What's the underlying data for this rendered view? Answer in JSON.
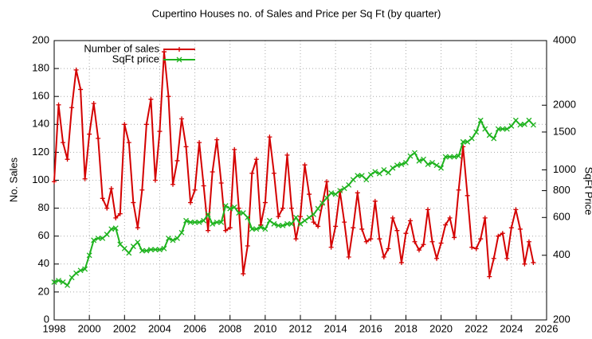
{
  "chart_data": {
    "type": "line",
    "title": "Cupertino Houses no. of Sales and Price per Sq Ft (by quarter)",
    "ylabel": "No. Sales",
    "y2label": "SqFt Price",
    "x": [
      1998,
      1998.25,
      1998.5,
      1998.75,
      1999,
      1999.25,
      1999.5,
      1999.75,
      2000,
      2000.25,
      2000.5,
      2000.75,
      2001,
      2001.25,
      2001.5,
      2001.75,
      2002,
      2002.25,
      2002.5,
      2002.75,
      2003,
      2003.25,
      2003.5,
      2003.75,
      2004,
      2004.25,
      2004.5,
      2004.75,
      2005,
      2005.25,
      2005.5,
      2005.75,
      2006,
      2006.25,
      2006.5,
      2006.75,
      2007,
      2007.25,
      2007.5,
      2007.75,
      2008,
      2008.25,
      2008.5,
      2008.75,
      2009,
      2009.25,
      2009.5,
      2009.75,
      2010,
      2010.25,
      2010.5,
      2010.75,
      2011,
      2011.25,
      2011.5,
      2011.75,
      2012,
      2012.25,
      2012.5,
      2012.75,
      2013,
      2013.25,
      2013.5,
      2013.75,
      2014,
      2014.25,
      2014.5,
      2014.75,
      2015,
      2015.25,
      2015.5,
      2015.75,
      2016,
      2016.25,
      2016.5,
      2016.75,
      2017,
      2017.25,
      2017.5,
      2017.75,
      2018,
      2018.25,
      2018.5,
      2018.75,
      2019,
      2019.25,
      2019.5,
      2019.75,
      2020,
      2020.25,
      2020.5,
      2020.75,
      2021,
      2021.25,
      2021.5,
      2021.75,
      2022,
      2022.25,
      2022.5,
      2022.75,
      2023,
      2023.25,
      2023.5,
      2023.75,
      2024,
      2024.25,
      2024.5,
      2024.75,
      2025,
      2025.25
    ],
    "series": [
      {
        "name": "Number of sales",
        "color": "#d40000",
        "marker": "plus",
        "values": [
          99,
          154,
          127,
          115,
          152,
          179,
          165,
          101,
          133,
          155,
          130,
          87,
          80,
          94,
          73,
          76,
          140,
          127,
          84,
          66,
          93,
          140,
          158,
          100,
          135,
          192,
          160,
          97,
          114,
          144,
          124,
          84,
          93,
          127,
          96,
          64,
          106,
          129,
          98,
          64,
          66,
          122,
          80,
          33,
          53,
          105,
          115,
          68,
          84,
          131,
          105,
          74,
          80,
          118,
          80,
          58,
          74,
          111,
          90,
          70,
          67,
          83,
          99,
          52,
          67,
          92,
          70,
          45,
          66,
          91,
          65,
          56,
          58,
          85,
          58,
          45,
          51,
          73,
          64,
          41,
          62,
          71,
          56,
          50,
          54,
          79,
          56,
          44,
          55,
          68,
          73,
          59,
          93,
          124,
          89,
          52,
          51,
          58,
          73,
          31,
          44,
          60,
          62,
          44,
          66,
          79,
          65,
          40,
          56,
          41
        ]
      },
      {
        "name": "SqFt price",
        "color": "#1fb31f",
        "marker": "cross",
        "axis": "y2",
        "values": [
          300,
          305,
          300,
          290,
          315,
          330,
          340,
          345,
          400,
          470,
          480,
          480,
          500,
          530,
          535,
          450,
          430,
          410,
          440,
          460,
          420,
          420,
          425,
          425,
          425,
          430,
          480,
          470,
          480,
          510,
          580,
          570,
          570,
          570,
          580,
          620,
          560,
          570,
          570,
          680,
          660,
          670,
          630,
          630,
          600,
          530,
          530,
          540,
          530,
          580,
          560,
          550,
          550,
          560,
          560,
          600,
          560,
          580,
          600,
          620,
          660,
          700,
          740,
          780,
          770,
          800,
          820,
          850,
          900,
          940,
          940,
          900,
          950,
          980,
          960,
          1000,
          970,
          1020,
          1050,
          1060,
          1080,
          1160,
          1200,
          1100,
          1120,
          1060,
          1080,
          1050,
          1020,
          1150,
          1150,
          1150,
          1160,
          1350,
          1350,
          1400,
          1500,
          1700,
          1550,
          1450,
          1400,
          1550,
          1550,
          1550,
          1600,
          1700,
          1620,
          1630,
          1700,
          1620
        ]
      }
    ],
    "xlim": [
      1998,
      2026
    ],
    "xticks": [
      1998,
      2000,
      2002,
      2004,
      2006,
      2008,
      2010,
      2012,
      2014,
      2016,
      2018,
      2020,
      2022,
      2024,
      2026
    ],
    "ylim": [
      0,
      200
    ],
    "yticks": [
      0,
      20,
      40,
      60,
      80,
      100,
      120,
      140,
      160,
      180,
      200
    ],
    "y2lim": [
      200,
      4000
    ],
    "y2ticks": [
      200,
      400,
      600,
      800,
      1000,
      1500,
      2000,
      4000
    ],
    "y2log": true,
    "grid": true,
    "legend": "top-left"
  }
}
